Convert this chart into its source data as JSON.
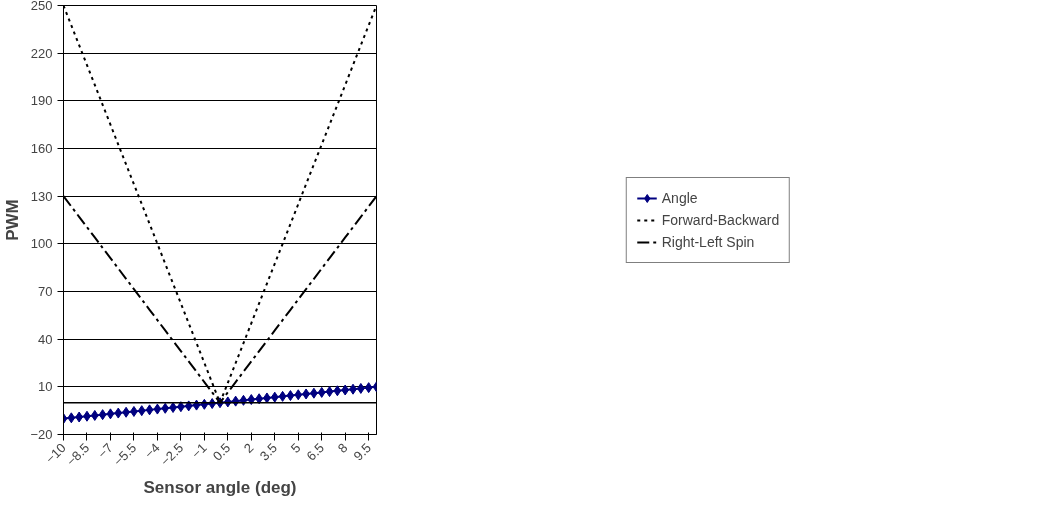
{
  "chart_data": {
    "type": "line",
    "xlabel": "Sensor angle (deg)",
    "ylabel": "PWM",
    "x": [
      -10,
      -9.5,
      -9,
      -8.5,
      -8,
      -7.5,
      -7,
      -6.5,
      -6,
      -5.5,
      -5,
      -4.5,
      -4,
      -3.5,
      -3,
      -2.5,
      -2,
      -1.5,
      -1,
      -0.5,
      0,
      0.5,
      1,
      1.5,
      2,
      2.5,
      3,
      3.5,
      4,
      4.5,
      5,
      5.5,
      6,
      6.5,
      7,
      7.5,
      8,
      8.5,
      9,
      9.5,
      10
    ],
    "series": [
      {
        "name": "Angle",
        "color": "#000080",
        "marker": "diamond",
        "line_style": "solid",
        "values": [
          -10,
          -9.5,
          -9,
          -8.5,
          -8,
          -7.5,
          -7,
          -6.5,
          -6,
          -5.5,
          -5,
          -4.5,
          -4,
          -3.5,
          -3,
          -2.5,
          -2,
          -1.5,
          -1,
          -0.5,
          0,
          0.5,
          1,
          1.5,
          2,
          2.5,
          3,
          3.5,
          4,
          4.5,
          5,
          5.5,
          6,
          6.5,
          7,
          7.5,
          8,
          8.5,
          9,
          9.5,
          10
        ]
      },
      {
        "name": "Forward-Backward",
        "color": "#000000",
        "marker": "none",
        "line_style": "dotted",
        "values": [
          250,
          237.5,
          225,
          212.5,
          200,
          187.5,
          175,
          162.5,
          150,
          137.5,
          125,
          112.5,
          100,
          87.5,
          75,
          62.5,
          50,
          37.5,
          25,
          12.5,
          0,
          12.5,
          25,
          37.5,
          50,
          62.5,
          75,
          87.5,
          100,
          112.5,
          125,
          137.5,
          150,
          162.5,
          175,
          187.5,
          200,
          212.5,
          225,
          237.5,
          250
        ]
      },
      {
        "name": "Right-Left Spin",
        "color": "#000000",
        "marker": "none",
        "line_style": "dashed",
        "values": [
          130,
          123.5,
          117,
          110.5,
          104,
          97.5,
          91,
          84.5,
          78,
          71.5,
          65,
          58.5,
          52,
          45.5,
          39,
          32.5,
          26,
          19.5,
          13,
          6.5,
          0,
          6.5,
          13,
          19.5,
          26,
          32.5,
          39,
          45.5,
          52,
          58.5,
          65,
          71.5,
          78,
          84.5,
          91,
          97.5,
          104,
          110.5,
          117,
          123.5,
          130
        ]
      }
    ],
    "xlim": [
      -10,
      10
    ],
    "xticks": [
      -10,
      -8.5,
      -7,
      -5.5,
      -4,
      -2.5,
      -1,
      0.5,
      2,
      3.5,
      5,
      6.5,
      8,
      9.5
    ],
    "ylim": [
      -20,
      250
    ],
    "yticks": [
      -20,
      10,
      40,
      70,
      100,
      130,
      160,
      190,
      220,
      250
    ],
    "ref_lines": [
      {
        "axis": "y",
        "value": 0,
        "color": "#000000"
      }
    ],
    "grid": "y",
    "legend": "right"
  }
}
